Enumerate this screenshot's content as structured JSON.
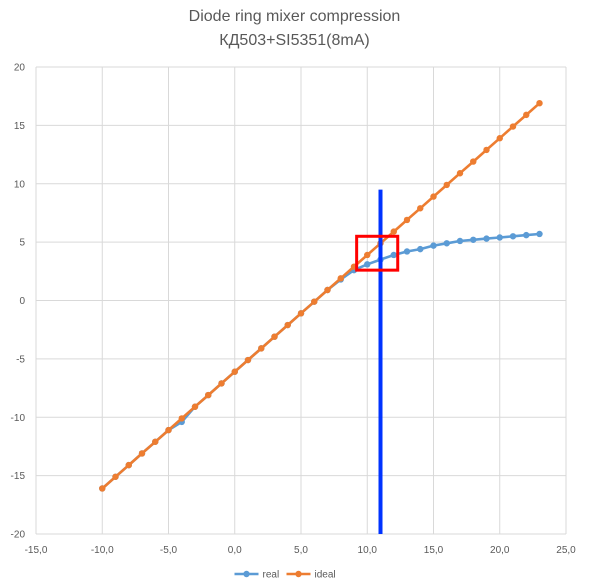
{
  "chart_data": {
    "type": "line",
    "title": "Diode ring mixer compression",
    "subtitle": "КД503+SI5351(8mA)",
    "xlabel": "",
    "ylabel": "",
    "xlim": [
      -15,
      25
    ],
    "ylim": [
      -20,
      20
    ],
    "x_ticks": [
      "-15,0",
      "-10,0",
      "-5,0",
      "0,0",
      "5,0",
      "10,0",
      "15,0",
      "20,0",
      "25,0"
    ],
    "y_ticks": [
      "-20",
      "-15",
      "-10",
      "-5",
      "0",
      "5",
      "10",
      "15",
      "20"
    ],
    "grid": true,
    "legend_position": "bottom",
    "series": [
      {
        "name": "real",
        "color": "#5B9BD5",
        "x": [
          -10,
          -9,
          -8,
          -7,
          -6,
          -5,
          -4,
          -3,
          -2,
          -1,
          0,
          1,
          2,
          3,
          4,
          5,
          6,
          7,
          8,
          9,
          10,
          11,
          12,
          13,
          14,
          15,
          16,
          17,
          18,
          19,
          20,
          21,
          22,
          23
        ],
        "y": [
          -16.1,
          -15.1,
          -14.1,
          -13.1,
          -12.1,
          -11.1,
          -10.4,
          -9.1,
          -8.1,
          -7.1,
          -6.1,
          -5.1,
          -4.1,
          -3.1,
          -2.1,
          -1.1,
          -0.1,
          0.9,
          1.8,
          2.6,
          3.1,
          3.5,
          3.9,
          4.2,
          4.4,
          4.7,
          4.9,
          5.1,
          5.2,
          5.3,
          5.4,
          5.5,
          5.6,
          5.7
        ]
      },
      {
        "name": "ideal",
        "color": "#ED7D31",
        "x": [
          -10,
          -9,
          -8,
          -7,
          -6,
          -5,
          -4,
          -3,
          -2,
          -1,
          0,
          1,
          2,
          3,
          4,
          5,
          6,
          7,
          8,
          9,
          10,
          11,
          12,
          13,
          14,
          15,
          16,
          17,
          18,
          19,
          20,
          21,
          22,
          23
        ],
        "y": [
          -16.1,
          -15.1,
          -14.1,
          -13.1,
          -12.1,
          -11.1,
          -10.1,
          -9.1,
          -8.1,
          -7.1,
          -6.1,
          -5.1,
          -4.1,
          -3.1,
          -2.1,
          -1.1,
          -0.1,
          0.9,
          1.9,
          2.9,
          3.9,
          4.9,
          5.9,
          6.9,
          7.9,
          8.9,
          9.9,
          10.9,
          11.9,
          12.9,
          13.9,
          14.9,
          15.9,
          16.9
        ]
      }
    ],
    "annotations": [
      {
        "type": "vertical-line",
        "x": 11,
        "y_range": [
          -20,
          9.5
        ],
        "color": "#0033FF"
      },
      {
        "type": "rectangle",
        "x_range": [
          9.2,
          12.3
        ],
        "y_range": [
          2.6,
          5.5
        ],
        "color": "#FF0000"
      }
    ]
  }
}
